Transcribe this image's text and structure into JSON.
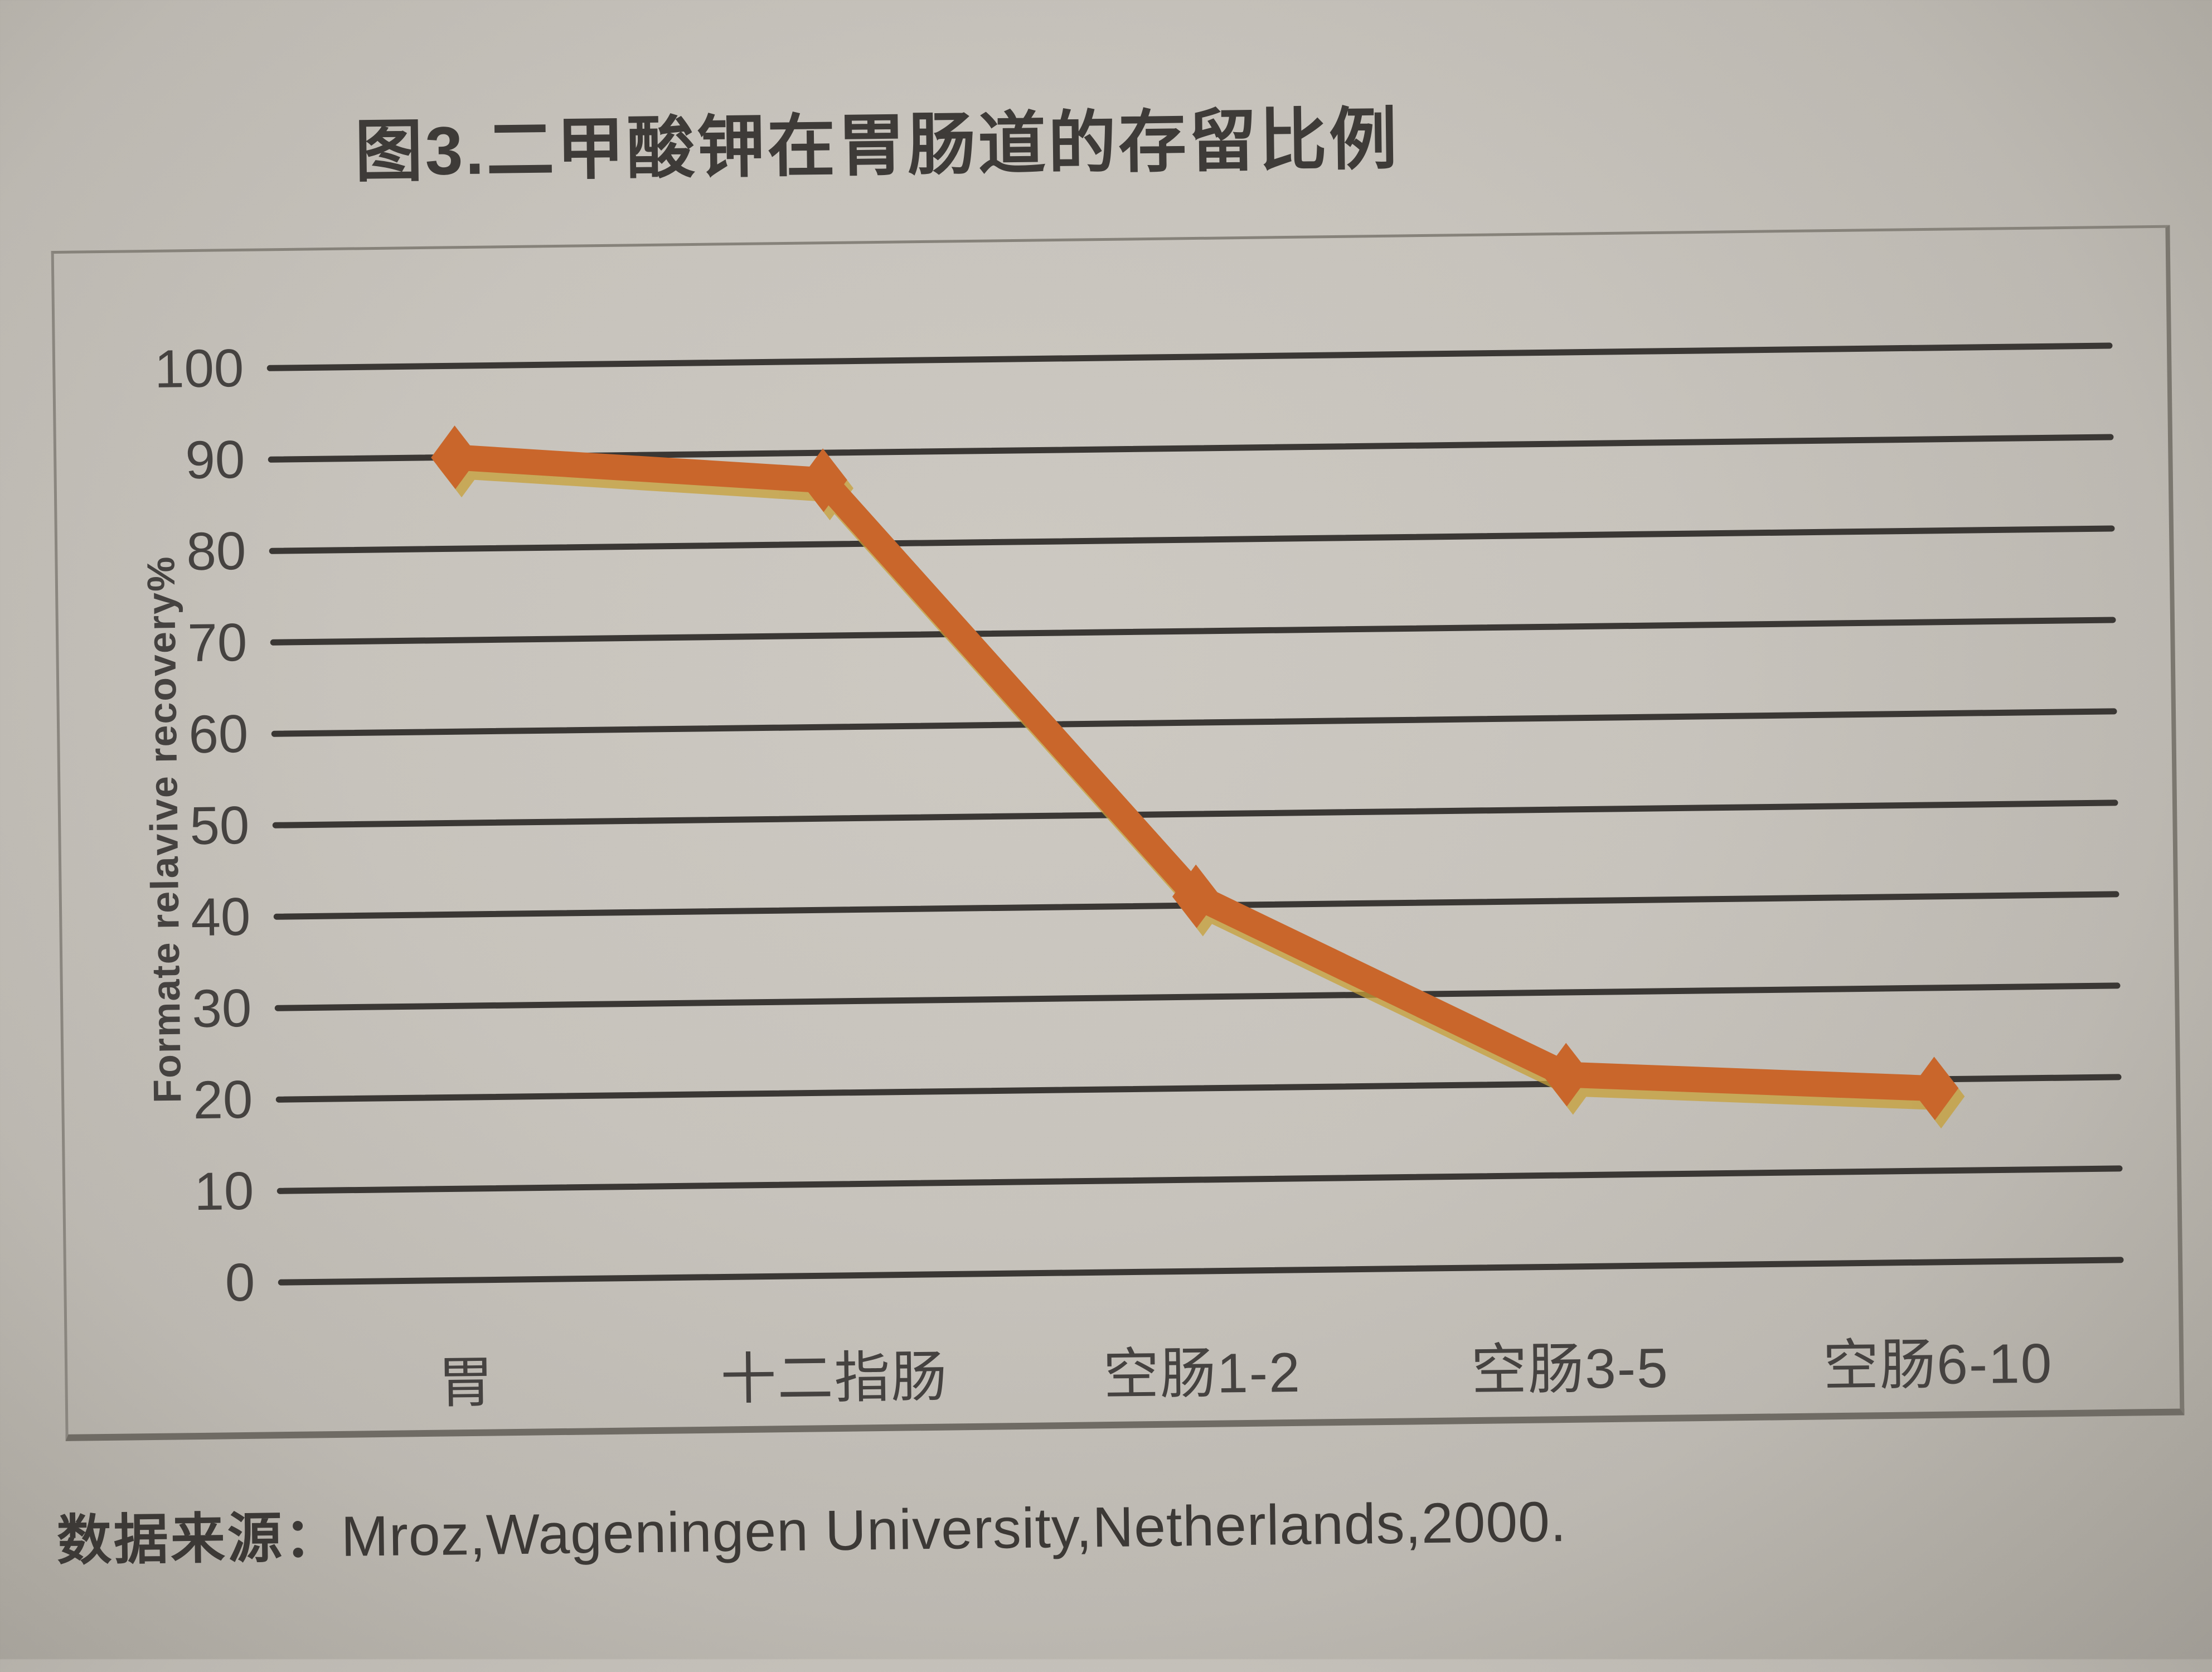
{
  "figure": {
    "title": "图3.二甲酸钾在胃肠道的存留比例",
    "source_prefix": "数据来源：",
    "source_text": "Mroz,Wageningen University,Netherlands,2000."
  },
  "chart_data": {
    "type": "line",
    "title": "图3.二甲酸钾在胃肠道的存留比例",
    "categories": [
      "胃",
      "十二指肠",
      "空肠1-2",
      "空肠3-5",
      "空肠6-10"
    ],
    "series": [
      {
        "name": "Formate relative recovery",
        "values": [
          90,
          87,
          41,
          21,
          19
        ]
      }
    ],
    "xlabel": "",
    "ylabel": "Formate relavive recovery%",
    "ylim": [
      0,
      100
    ],
    "yticks": [
      100,
      90,
      80,
      70,
      60,
      50,
      40,
      30,
      20,
      10,
      0
    ],
    "grid": "horizontal-only",
    "legend": "none",
    "marker": "diamond",
    "source": "数据来源：Mroz,Wageningen University,Netherlands,2000."
  },
  "colors": {
    "paper": "#c6c2bb",
    "ink": "#3e3b38",
    "grid_line": "#3a3734",
    "series_line": "#c9662b",
    "print_fringe": "#c7a038",
    "frame_border": "#7b776f"
  }
}
